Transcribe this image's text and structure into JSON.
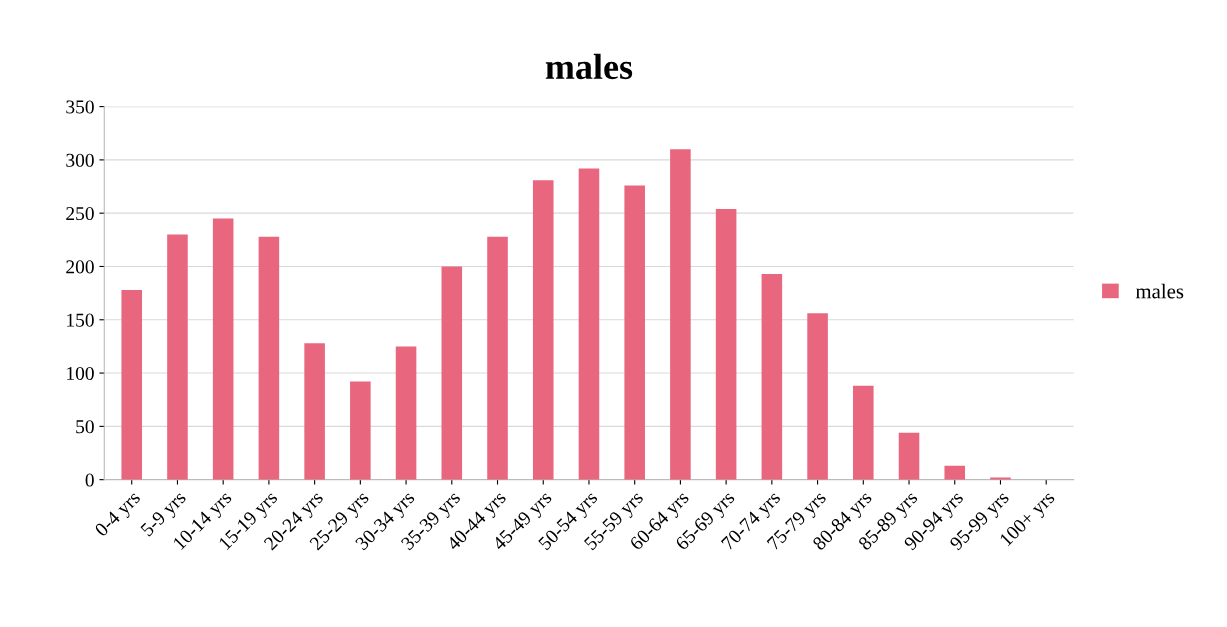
{
  "chart_data": {
    "type": "bar",
    "title": "males",
    "categories": [
      "0-4 yrs",
      "5-9 yrs",
      "10-14 yrs",
      "15-19 yrs",
      "20-24 yrs",
      "25-29 yrs",
      "30-34 yrs",
      "35-39 yrs",
      "40-44 yrs",
      "45-49 yrs",
      "50-54 yrs",
      "55-59 yrs",
      "60-64 yrs",
      "65-69 yrs",
      "70-74 yrs",
      "75-79 yrs",
      "80-84 yrs",
      "85-89 yrs",
      "90-94 yrs",
      "95-99 yrs",
      "100+ yrs"
    ],
    "series": [
      {
        "name": "males",
        "color": "#e8677e",
        "values": [
          178,
          230,
          245,
          228,
          128,
          92,
          125,
          200,
          228,
          281,
          292,
          276,
          310,
          254,
          193,
          156,
          88,
          44,
          13,
          2,
          0
        ]
      }
    ],
    "ylim": [
      0,
      350
    ],
    "yticks": [
      0,
      50,
      100,
      150,
      200,
      250,
      300,
      350
    ],
    "grid": "y",
    "legend": "right"
  }
}
